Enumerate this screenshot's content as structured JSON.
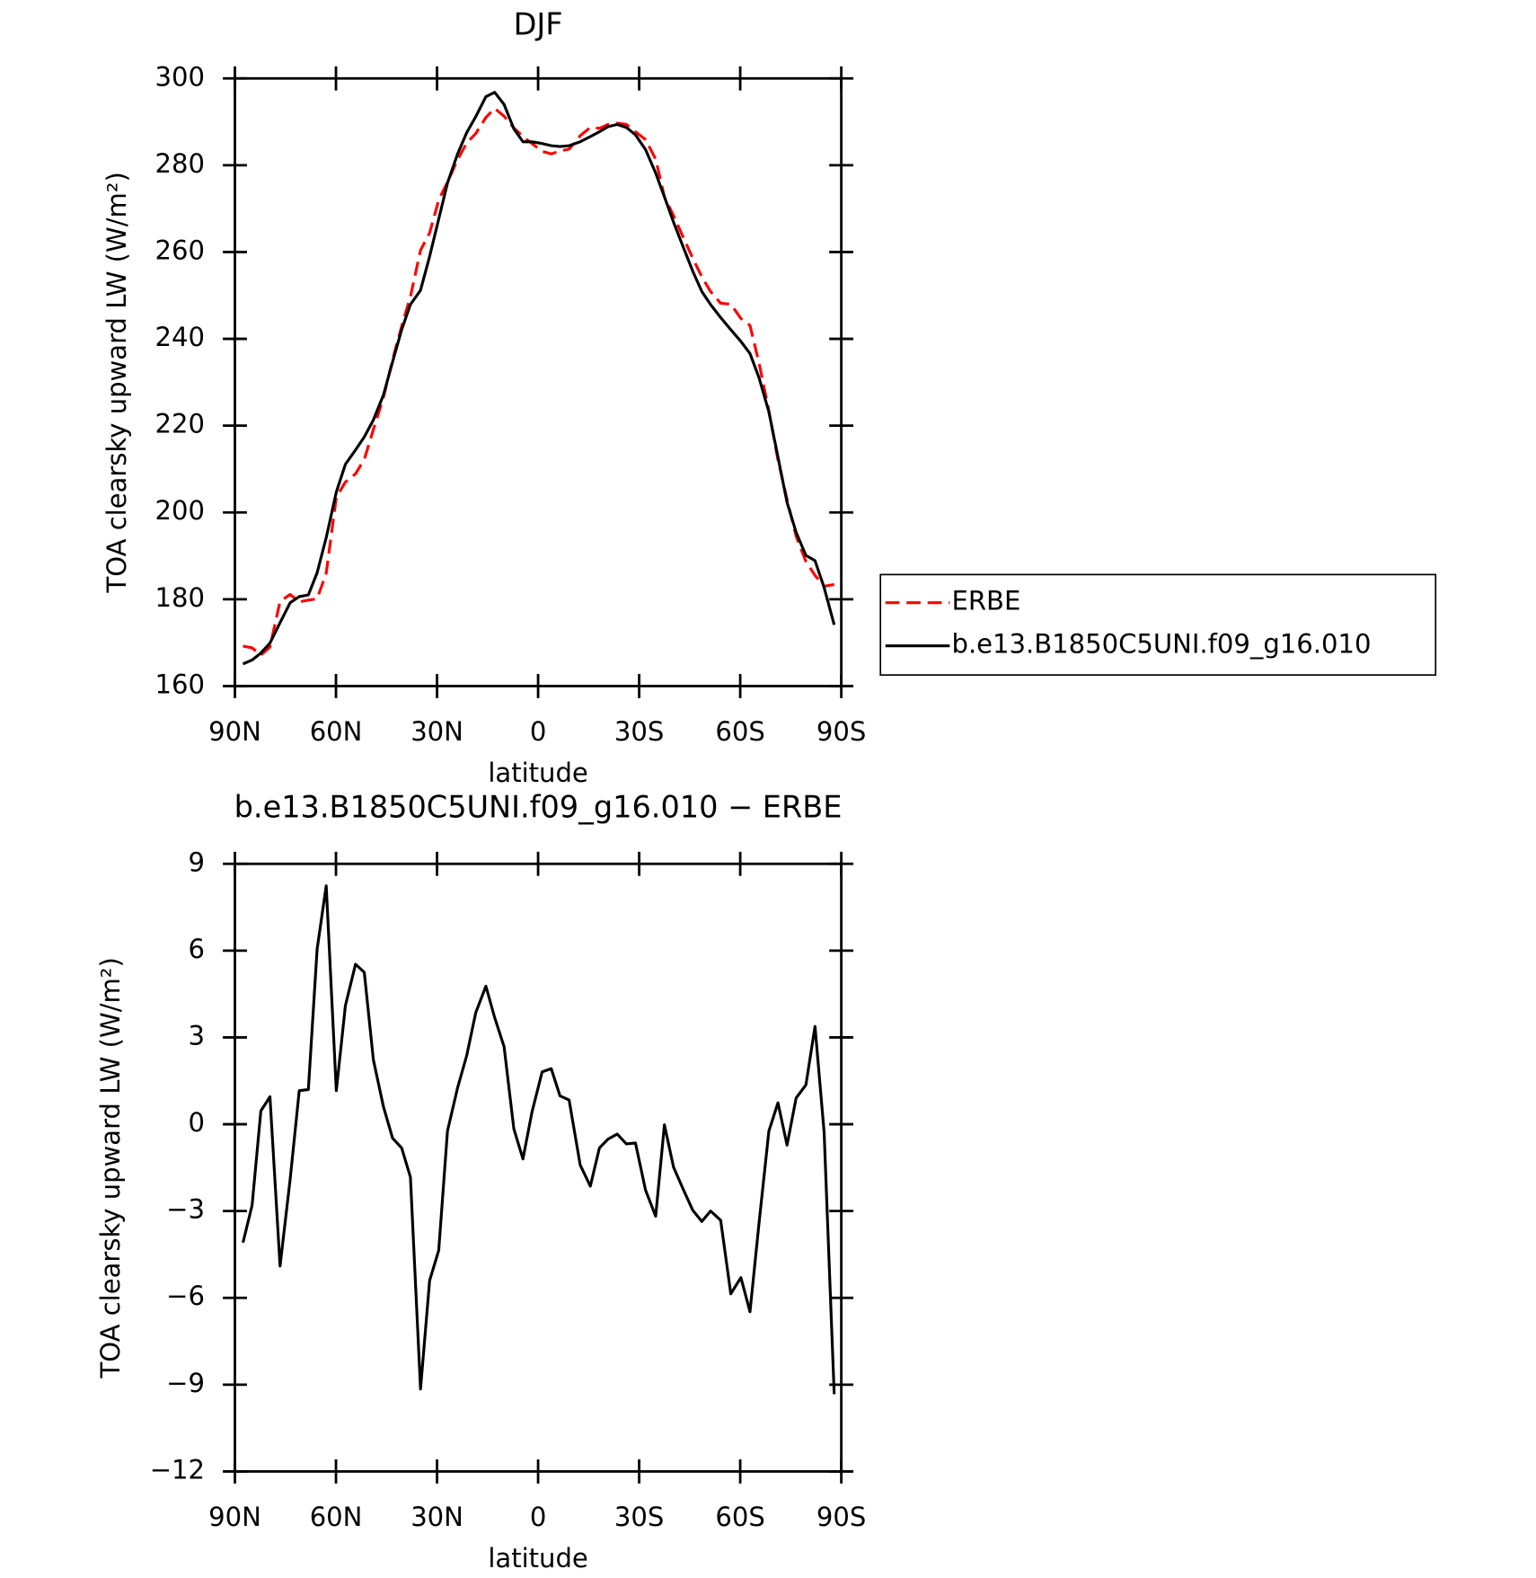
{
  "chart_data": [
    {
      "type": "line",
      "title": "DJF",
      "xlabel": "latitude",
      "ylabel": "TOA clearsky upward LW (W/m²)",
      "x": [
        87.6,
        84.9,
        82.3,
        79.6,
        76.6,
        73.6,
        70.9,
        68.2,
        65.6,
        62.9,
        59.9,
        57.2,
        54.2,
        51.6,
        48.9,
        45.9,
        43.2,
        40.5,
        37.9,
        34.9,
        32.2,
        29.5,
        26.9,
        23.9,
        21.2,
        18.5,
        15.5,
        12.9,
        10.1,
        7.2,
        4.5,
        1.8,
        -1.2,
        -3.9,
        -6.5,
        -9.2,
        -12.5,
        -15.5,
        -18.2,
        -20.8,
        -23.5,
        -26.2,
        -28.9,
        -31.9,
        -34.9,
        -37.5,
        -40.2,
        -43.2,
        -45.9,
        -48.6,
        -51.2,
        -54.2,
        -57.2,
        -60.2,
        -62.9,
        -65.6,
        -68.5,
        -71.2,
        -73.9,
        -76.6,
        -79.5,
        -82.2,
        -84.9,
        -87.9
      ],
      "series": [
        {
          "name": "ERBE",
          "color": "#ff0000",
          "dashed": true,
          "values": [
            169.2,
            168.8,
            167.1,
            169.0,
            179.5,
            181.1,
            179.4,
            179.8,
            180.1,
            186.0,
            203.5,
            207.0,
            208.9,
            212.2,
            219.1,
            226.5,
            235.2,
            242.9,
            249.7,
            260.4,
            264.4,
            272.0,
            276.1,
            281.3,
            285.1,
            287.3,
            291.0,
            293.1,
            291.3,
            288.6,
            286.6,
            285.0,
            283.2,
            282.6,
            283.3,
            283.7,
            286.8,
            288.7,
            288.5,
            289.4,
            289.7,
            289.4,
            287.7,
            285.9,
            281.4,
            272.7,
            268.4,
            263.2,
            258.6,
            254.3,
            250.9,
            248.2,
            248.0,
            244.7,
            243.1,
            234.4,
            223.4,
            212.1,
            203.0,
            194.5,
            188.7,
            185.5,
            183.0,
            183.4
          ]
        },
        {
          "name": "b.e13.B1850C5UNI.f09_g16.010",
          "color": "#000000",
          "dashed": false,
          "values": [
            165.1,
            166.0,
            167.6,
            169.9,
            174.6,
            179.2,
            180.6,
            181.0,
            186.1,
            194.2,
            204.7,
            211.1,
            214.4,
            217.4,
            221.3,
            227.1,
            234.7,
            242.1,
            247.9,
            251.2,
            259.0,
            267.6,
            275.9,
            282.6,
            287.5,
            291.2,
            295.8,
            296.8,
            294.0,
            288.4,
            285.4,
            285.4,
            285.0,
            284.5,
            284.3,
            284.5,
            285.4,
            286.6,
            287.7,
            288.9,
            289.4,
            288.7,
            287.0,
            283.6,
            278.2,
            272.7,
            266.9,
            260.9,
            255.6,
            250.9,
            247.9,
            244.9,
            242.1,
            239.4,
            236.6,
            231.0,
            223.2,
            212.8,
            202.3,
            195.4,
            190.1,
            188.9,
            182.7,
            174.1
          ]
        }
      ],
      "xlim": [
        90,
        -90
      ],
      "xticks": [
        {
          "value": 90,
          "label": "90N"
        },
        {
          "value": 60,
          "label": "60N"
        },
        {
          "value": 30,
          "label": "30N"
        },
        0,
        {
          "value": -30,
          "label": "30S"
        },
        {
          "value": -60,
          "label": "60S"
        },
        {
          "value": -90,
          "label": "90S"
        }
      ],
      "ylim": [
        160,
        300
      ],
      "yticks": [
        160,
        180,
        200,
        220,
        240,
        260,
        280,
        300
      ],
      "legend": "right"
    },
    {
      "type": "line",
      "title": "b.e13.B1850C5UNI.f09_g16.010 − ERBE",
      "xlabel": "latitude",
      "ylabel": "TOA clearsky upward LW (W/m²)",
      "x": [
        87.6,
        84.9,
        82.3,
        79.6,
        76.6,
        73.6,
        70.9,
        68.2,
        65.6,
        62.9,
        59.9,
        57.2,
        54.2,
        51.6,
        48.9,
        45.9,
        43.2,
        40.5,
        37.9,
        34.9,
        32.2,
        29.5,
        26.9,
        23.9,
        21.2,
        18.5,
        15.5,
        12.9,
        10.1,
        7.2,
        4.5,
        1.8,
        -1.2,
        -3.9,
        -6.5,
        -9.2,
        -12.5,
        -15.5,
        -18.2,
        -20.8,
        -23.5,
        -26.2,
        -28.9,
        -31.9,
        -34.9,
        -37.5,
        -40.2,
        -43.2,
        -45.9,
        -48.6,
        -51.2,
        -54.2,
        -57.2,
        -60.2,
        -62.9,
        -65.6,
        -68.5,
        -71.2,
        -73.9,
        -76.6,
        -79.5,
        -82.2,
        -84.9,
        -87.9
      ],
      "series": [
        {
          "color": "#000000",
          "dashed": false,
          "values": [
            -4.09,
            -2.8,
            0.46,
            0.95,
            -4.9,
            -1.9,
            1.16,
            1.2,
            6.05,
            8.24,
            1.16,
            4.1,
            5.53,
            5.25,
            2.23,
            0.6,
            -0.48,
            -0.82,
            -1.83,
            -9.15,
            -5.4,
            -4.36,
            -0.23,
            1.26,
            2.37,
            3.86,
            4.77,
            3.69,
            2.68,
            -0.16,
            -1.2,
            0.43,
            1.81,
            1.92,
            0.98,
            0.84,
            -1.41,
            -2.14,
            -0.82,
            -0.51,
            -0.34,
            -0.68,
            -0.65,
            -2.28,
            -3.18,
            -0.02,
            -1.48,
            -2.28,
            -2.97,
            -3.36,
            -3.0,
            -3.32,
            -5.86,
            -5.3,
            -6.48,
            -3.4,
            -0.24,
            0.74,
            -0.72,
            0.91,
            1.36,
            3.38,
            -0.27,
            -9.33
          ]
        }
      ],
      "xlim": [
        90,
        -90
      ],
      "xticks": [
        {
          "value": 90,
          "label": "90N"
        },
        {
          "value": 60,
          "label": "60N"
        },
        {
          "value": 30,
          "label": "30N"
        },
        0,
        {
          "value": -30,
          "label": "30S"
        },
        {
          "value": -60,
          "label": "60S"
        },
        {
          "value": -90,
          "label": "90S"
        }
      ],
      "ylim": [
        -12,
        9
      ],
      "yticks": [
        {
          "value": -12,
          "label": "−12"
        },
        {
          "value": -9,
          "label": "−9"
        },
        {
          "value": -6,
          "label": "−6"
        },
        {
          "value": -3,
          "label": "−3"
        },
        0,
        3,
        6,
        9
      ]
    }
  ]
}
